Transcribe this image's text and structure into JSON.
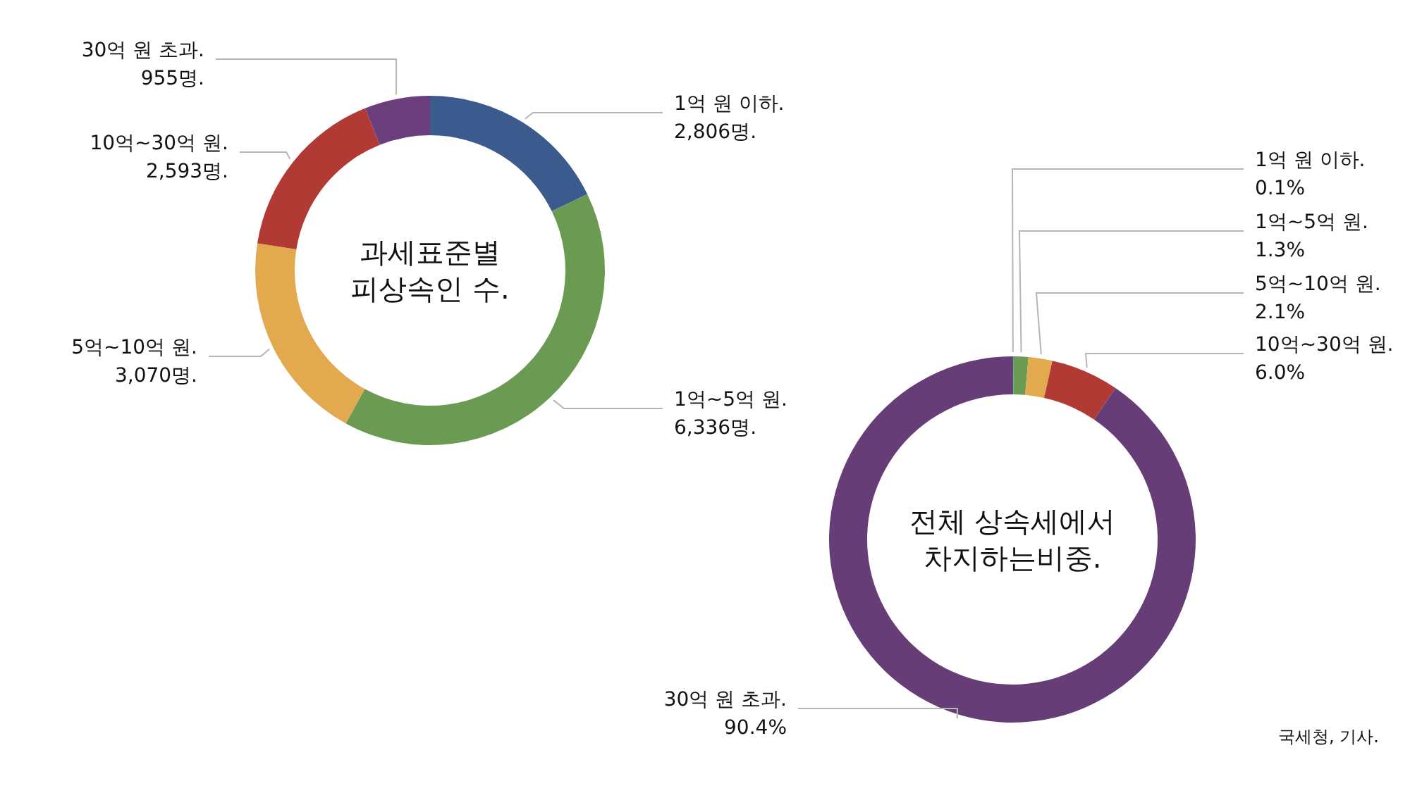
{
  "chart_data": [
    {
      "type": "donut",
      "title": "과세표준별\n피상속인 수.",
      "categories": [
        "1억 원 이하.",
        "1억~5억 원.",
        "5억~10억 원.",
        "10억~30억 원.",
        "30억 원 초과."
      ],
      "values": [
        2806,
        6336,
        3070,
        2593,
        955
      ],
      "value_labels": [
        "2,806명.",
        "6,336명.",
        "3,070명.",
        "2,593명.",
        "955명."
      ],
      "colors": [
        "#3b5b8e",
        "#6b9a52",
        "#e2a94f",
        "#b23a34",
        "#6a3f7c"
      ]
    },
    {
      "type": "donut",
      "title": "전체 상속세에서\n차지하는비중.",
      "categories": [
        "1억 원 이하.",
        "1억~5억 원.",
        "5억~10억 원.",
        "10억~30억 원.",
        "30억 원 초과."
      ],
      "values": [
        0.1,
        1.3,
        2.1,
        6.0,
        90.4
      ],
      "value_labels": [
        "0.1%",
        "1.3%",
        "2.1%",
        "6.0%",
        "90.4%"
      ],
      "colors": [
        "#3b5b8e",
        "#6b9a52",
        "#e2a94f",
        "#b23a34",
        "#673d78"
      ],
      "annotations": [
        "국세청, 기사."
      ]
    }
  ]
}
